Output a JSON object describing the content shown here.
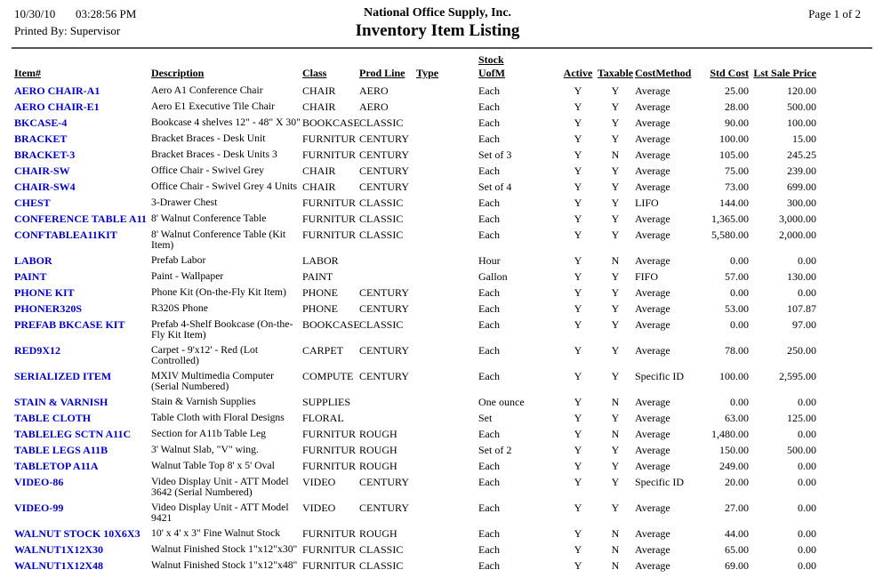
{
  "report": {
    "date": "10/30/10",
    "time": "03:28:56 PM",
    "printed_by": "Printed By: Supervisor",
    "company": "National Office Supply, Inc.",
    "title": "Inventory Item Listing",
    "page": "Page 1 of 2"
  },
  "colors": {
    "item_link": "#0000CC",
    "header_rule": "#555555"
  },
  "table": {
    "columns": {
      "item": "Item#",
      "description": "Description",
      "class": "Class",
      "prod_line": "Prod Line",
      "type": "Type",
      "stock": "Stock",
      "uofm": "UofM",
      "active": "Active",
      "taxable": "Taxable",
      "cost_method": "CostMethod",
      "std_cost": "Std Cost",
      "lst_sale_price": "Lst Sale Price"
    },
    "rows": [
      {
        "item": "AERO CHAIR-A1",
        "description": "Aero A1 Conference Chair",
        "class": "CHAIR",
        "prod_line": "AERO",
        "type": "",
        "uofm": "Each",
        "active": "Y",
        "taxable": "Y",
        "cost_method": "Average",
        "std_cost": "25.00",
        "lst_sale_price": "120.00"
      },
      {
        "item": "AERO CHAIR-E1",
        "description": "Aero E1 Executive Tile Chair",
        "class": "CHAIR",
        "prod_line": "AERO",
        "type": "",
        "uofm": "Each",
        "active": "Y",
        "taxable": "Y",
        "cost_method": "Average",
        "std_cost": "28.00",
        "lst_sale_price": "500.00"
      },
      {
        "item": "BKCASE-4",
        "description": "Bookcase 4 shelves 12\" - 48\" X 30\"",
        "class": "BOOKCASE",
        "prod_line": "CLASSIC",
        "type": "",
        "uofm": "Each",
        "active": "Y",
        "taxable": "Y",
        "cost_method": "Average",
        "std_cost": "90.00",
        "lst_sale_price": "100.00"
      },
      {
        "item": "BRACKET",
        "description": "Bracket Braces - Desk Unit",
        "class": "FURNITUR",
        "prod_line": "CENTURY",
        "type": "",
        "uofm": "Each",
        "active": "Y",
        "taxable": "Y",
        "cost_method": "Average",
        "std_cost": "100.00",
        "lst_sale_price": "15.00"
      },
      {
        "item": "BRACKET-3",
        "description": "Bracket Braces - Desk Units 3",
        "class": "FURNITUR",
        "prod_line": "CENTURY",
        "type": "",
        "uofm": "Set of 3",
        "active": "Y",
        "taxable": "N",
        "cost_method": "Average",
        "std_cost": "105.00",
        "lst_sale_price": "245.25"
      },
      {
        "item": "CHAIR-SW",
        "description": "Office Chair - Swivel Grey",
        "class": "CHAIR",
        "prod_line": "CENTURY",
        "type": "",
        "uofm": "Each",
        "active": "Y",
        "taxable": "Y",
        "cost_method": "Average",
        "std_cost": "75.00",
        "lst_sale_price": "239.00"
      },
      {
        "item": "CHAIR-SW4",
        "description": "Office Chair - Swivel Grey 4 Units",
        "class": "CHAIR",
        "prod_line": "CENTURY",
        "type": "",
        "uofm": "Set of 4",
        "active": "Y",
        "taxable": "Y",
        "cost_method": "Average",
        "std_cost": "73.00",
        "lst_sale_price": "699.00"
      },
      {
        "item": "CHEST",
        "description": "3-Drawer Chest",
        "class": "FURNITUR",
        "prod_line": "CLASSIC",
        "type": "",
        "uofm": "Each",
        "active": "Y",
        "taxable": "Y",
        "cost_method": "LIFO",
        "std_cost": "144.00",
        "lst_sale_price": "300.00"
      },
      {
        "item": "CONFERENCE TABLE A11",
        "description": "8' Walnut Conference Table",
        "class": "FURNITUR",
        "prod_line": "CLASSIC",
        "type": "",
        "uofm": "Each",
        "active": "Y",
        "taxable": "Y",
        "cost_method": "Average",
        "std_cost": "1,365.00",
        "lst_sale_price": "3,000.00"
      },
      {
        "item": "CONFTABLEA11KIT",
        "description": "8' Walnut Conference Table (Kit Item)",
        "class": "FURNITUR",
        "prod_line": "CLASSIC",
        "type": "",
        "uofm": "Each",
        "active": "Y",
        "taxable": "Y",
        "cost_method": "Average",
        "std_cost": "5,580.00",
        "lst_sale_price": "2,000.00"
      },
      {
        "item": "LABOR",
        "description": "Prefab Labor",
        "class": "LABOR",
        "prod_line": "",
        "type": "",
        "uofm": "Hour",
        "active": "Y",
        "taxable": "N",
        "cost_method": "Average",
        "std_cost": "0.00",
        "lst_sale_price": "0.00"
      },
      {
        "item": "PAINT",
        "description": "Paint - Wallpaper",
        "class": "PAINT",
        "prod_line": "",
        "type": "",
        "uofm": "Gallon",
        "active": "Y",
        "taxable": "Y",
        "cost_method": "FIFO",
        "std_cost": "57.00",
        "lst_sale_price": "130.00"
      },
      {
        "item": "PHONE KIT",
        "description": "Phone Kit (On-the-Fly Kit Item)",
        "class": "PHONE",
        "prod_line": "CENTURY",
        "type": "",
        "uofm": "Each",
        "active": "Y",
        "taxable": "Y",
        "cost_method": "Average",
        "std_cost": "0.00",
        "lst_sale_price": "0.00"
      },
      {
        "item": "PHONER320S",
        "description": "R320S Phone",
        "class": "PHONE",
        "prod_line": "CENTURY",
        "type": "",
        "uofm": "Each",
        "active": "Y",
        "taxable": "Y",
        "cost_method": "Average",
        "std_cost": "53.00",
        "lst_sale_price": "107.87"
      },
      {
        "item": "PREFAB BKCASE KIT",
        "description": "Prefab 4-Shelf Bookcase (On-the-Fly Kit Item)",
        "class": "BOOKCASE",
        "prod_line": "CLASSIC",
        "type": "",
        "uofm": "Each",
        "active": "Y",
        "taxable": "Y",
        "cost_method": "Average",
        "std_cost": "0.00",
        "lst_sale_price": "97.00"
      },
      {
        "item": "RED9X12",
        "description": "Carpet - 9'x12' - Red (Lot Controlled)",
        "class": "CARPET",
        "prod_line": "CENTURY",
        "type": "",
        "uofm": "Each",
        "active": "Y",
        "taxable": "Y",
        "cost_method": "Average",
        "std_cost": "78.00",
        "lst_sale_price": "250.00"
      },
      {
        "item": "SERIALIZED ITEM",
        "description": "MXIV Multimedia Computer (Serial Numbered)",
        "class": "COMPUTE",
        "prod_line": "CENTURY",
        "type": "",
        "uofm": "Each",
        "active": "Y",
        "taxable": "Y",
        "cost_method": "Specific ID",
        "std_cost": "100.00",
        "lst_sale_price": "2,595.00"
      },
      {
        "item": "STAIN & VARNISH",
        "description": "Stain & Varnish Supplies",
        "class": "SUPPLIES",
        "prod_line": "",
        "type": "",
        "uofm": "One ounce",
        "active": "Y",
        "taxable": "N",
        "cost_method": "Average",
        "std_cost": "0.00",
        "lst_sale_price": "0.00"
      },
      {
        "item": "TABLE CLOTH",
        "description": "Table Cloth with Floral Designs",
        "class": "FLORAL",
        "prod_line": "",
        "type": "",
        "uofm": "Set",
        "active": "Y",
        "taxable": "Y",
        "cost_method": "Average",
        "std_cost": "63.00",
        "lst_sale_price": "125.00"
      },
      {
        "item": "TABLELEG SCTN A11C",
        "description": "Section for A11b Table Leg",
        "class": "FURNITUR",
        "prod_line": "ROUGH",
        "type": "",
        "uofm": "Each",
        "active": "Y",
        "taxable": "N",
        "cost_method": "Average",
        "std_cost": "1,480.00",
        "lst_sale_price": "0.00"
      },
      {
        "item": "TABLE LEGS A11B",
        "description": "3' Walnut Slab, \"V\" wing.",
        "class": "FURNITUR",
        "prod_line": "ROUGH",
        "type": "",
        "uofm": "Set of 2",
        "active": "Y",
        "taxable": "Y",
        "cost_method": "Average",
        "std_cost": "150.00",
        "lst_sale_price": "500.00"
      },
      {
        "item": "TABLETOP A11A",
        "description": "Walnut Table Top 8' x 5' Oval",
        "class": "FURNITUR",
        "prod_line": "ROUGH",
        "type": "",
        "uofm": "Each",
        "active": "Y",
        "taxable": "Y",
        "cost_method": "Average",
        "std_cost": "249.00",
        "lst_sale_price": "0.00"
      },
      {
        "item": "VIDEO-86",
        "description": "Video Display Unit - ATT Model 3642 (Serial Numbered)",
        "class": "VIDEO",
        "prod_line": "CENTURY",
        "type": "",
        "uofm": "Each",
        "active": "Y",
        "taxable": "Y",
        "cost_method": "Specific ID",
        "std_cost": "20.00",
        "lst_sale_price": "0.00"
      },
      {
        "item": "VIDEO-99",
        "description": "Video Display Unit - ATT Model 9421",
        "class": "VIDEO",
        "prod_line": "CENTURY",
        "type": "",
        "uofm": "Each",
        "active": "Y",
        "taxable": "Y",
        "cost_method": "Average",
        "std_cost": "27.00",
        "lst_sale_price": "0.00"
      },
      {
        "item": "WALNUT STOCK 10X6X3",
        "description": "10' x 4' x 3\" Fine Walnut Stock",
        "class": "FURNITUR",
        "prod_line": "ROUGH",
        "type": "",
        "uofm": "Each",
        "active": "Y",
        "taxable": "N",
        "cost_method": "Average",
        "std_cost": "44.00",
        "lst_sale_price": "0.00"
      },
      {
        "item": "WALNUT1X12X30",
        "description": "Walnut Finished Stock 1\"x12\"x30\"",
        "class": "FURNITUR",
        "prod_line": "CLASSIC",
        "type": "",
        "uofm": "Each",
        "active": "Y",
        "taxable": "N",
        "cost_method": "Average",
        "std_cost": "65.00",
        "lst_sale_price": "0.00"
      },
      {
        "item": "WALNUT1X12X48",
        "description": "Walnut Finished Stock 1\"x12\"x48\"",
        "class": "FURNITUR",
        "prod_line": "CLASSIC",
        "type": "",
        "uofm": "Each",
        "active": "Y",
        "taxable": "N",
        "cost_method": "Average",
        "std_cost": "69.00",
        "lst_sale_price": "0.00"
      }
    ]
  }
}
